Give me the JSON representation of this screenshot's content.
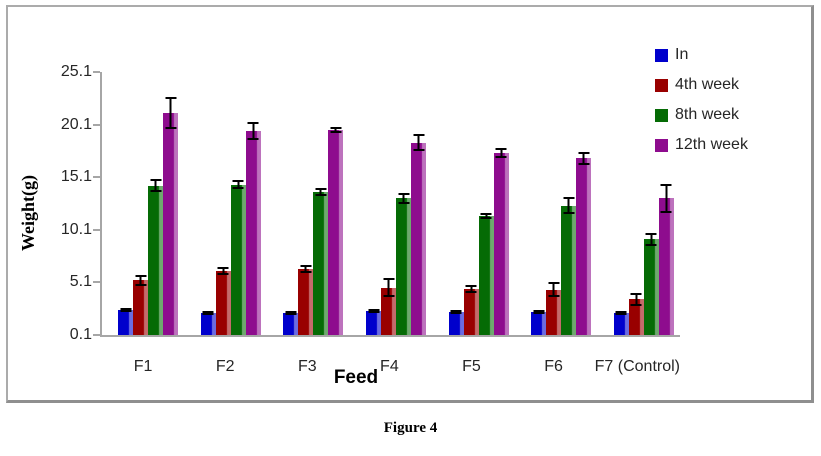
{
  "figure": {
    "caption": "Figure 4"
  },
  "chart_data": {
    "type": "bar",
    "title": "",
    "xlabel": "Feed",
    "ylabel": "Weight(g)",
    "categories": [
      "F1",
      "F2",
      "F3",
      "F4",
      "F5",
      "F6",
      "F7 (Control)"
    ],
    "series": [
      {
        "name": "In",
        "color": "#0000CC",
        "values": [
          2.5,
          2.2,
          2.2,
          2.4,
          2.3,
          2.3,
          2.2
        ],
        "errors": [
          0.2,
          0.2,
          0.1,
          0.2,
          0.1,
          0.2,
          0.2
        ]
      },
      {
        "name": "4th week",
        "color": "#990000",
        "values": [
          5.3,
          6.2,
          6.4,
          4.6,
          4.5,
          4.4,
          3.5
        ],
        "errors": [
          0.5,
          0.4,
          0.4,
          0.9,
          0.4,
          0.7,
          0.6
        ]
      },
      {
        "name": "8th week",
        "color": "#056B05",
        "values": [
          14.3,
          14.4,
          13.7,
          13.1,
          11.4,
          12.4,
          9.2
        ],
        "errors": [
          0.6,
          0.4,
          0.4,
          0.5,
          0.3,
          0.8,
          0.6
        ]
      },
      {
        "name": "12th week",
        "color": "#8E0C8E",
        "values": [
          21.2,
          19.5,
          19.6,
          18.4,
          17.4,
          16.9,
          13.1
        ],
        "errors": [
          1.5,
          0.9,
          0.3,
          0.8,
          0.5,
          0.6,
          1.4
        ]
      }
    ],
    "y_ticks": [
      "0.1",
      "5.1",
      "10.1",
      "15.1",
      "20.1",
      "25.1"
    ],
    "ylim": [
      0.1,
      25.1
    ],
    "grid": false,
    "error_bars": true,
    "error_bar_color": "#000000",
    "axis_color": "#a6a6a6",
    "text_color": "#262626",
    "legend_position": "top-right"
  }
}
